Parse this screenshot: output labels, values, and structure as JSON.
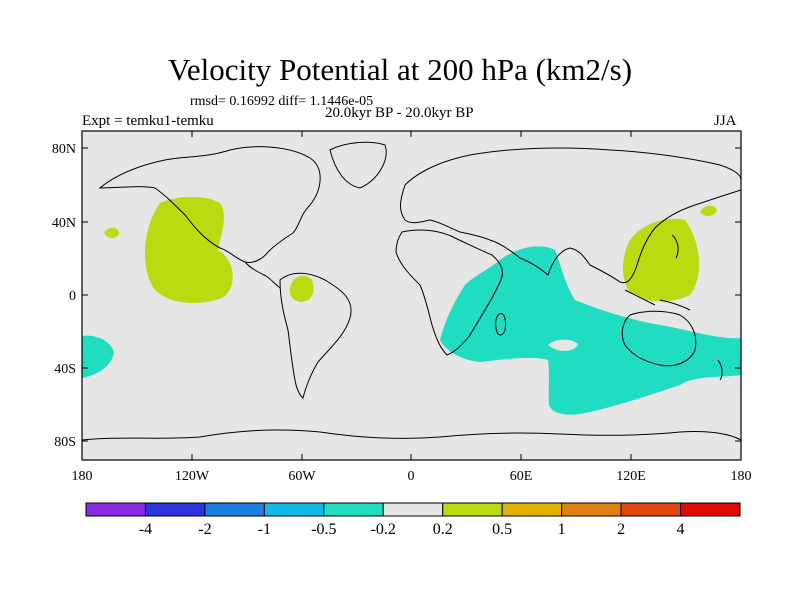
{
  "title": "Velocity Potential at 200 hPa (km2/s)",
  "stats_line": "rmsd= 0.16992 diff= 1.1446e-05",
  "experiment": "Expt = temku1-temku",
  "period": "20.0kyr BP - 20.0kyr BP",
  "season": "JJA",
  "lat_labels": [
    "80N",
    "40N",
    "0",
    "40S",
    "80S"
  ],
  "lon_labels": [
    "180",
    "120W",
    "60W",
    "0",
    "60E",
    "120E",
    "180"
  ],
  "colorbar": {
    "labels": [
      "-4",
      "-2",
      "-1",
      "-0.5",
      "-0.2",
      "0.2",
      "0.5",
      "1",
      "2",
      "4"
    ],
    "colors": [
      "#8a2be2",
      "#2a35e0",
      "#1a7fe0",
      "#12b8e6",
      "#20dcc0",
      "#e6e6e6",
      "#b8dc10",
      "#e0b400",
      "#e08010",
      "#e04810",
      "#e00a0a"
    ]
  },
  "colors": {
    "ocean_bg": "#e6e6e6",
    "positive_anomaly": "#b8dc10",
    "negative_anomaly": "#20dcc0"
  }
}
